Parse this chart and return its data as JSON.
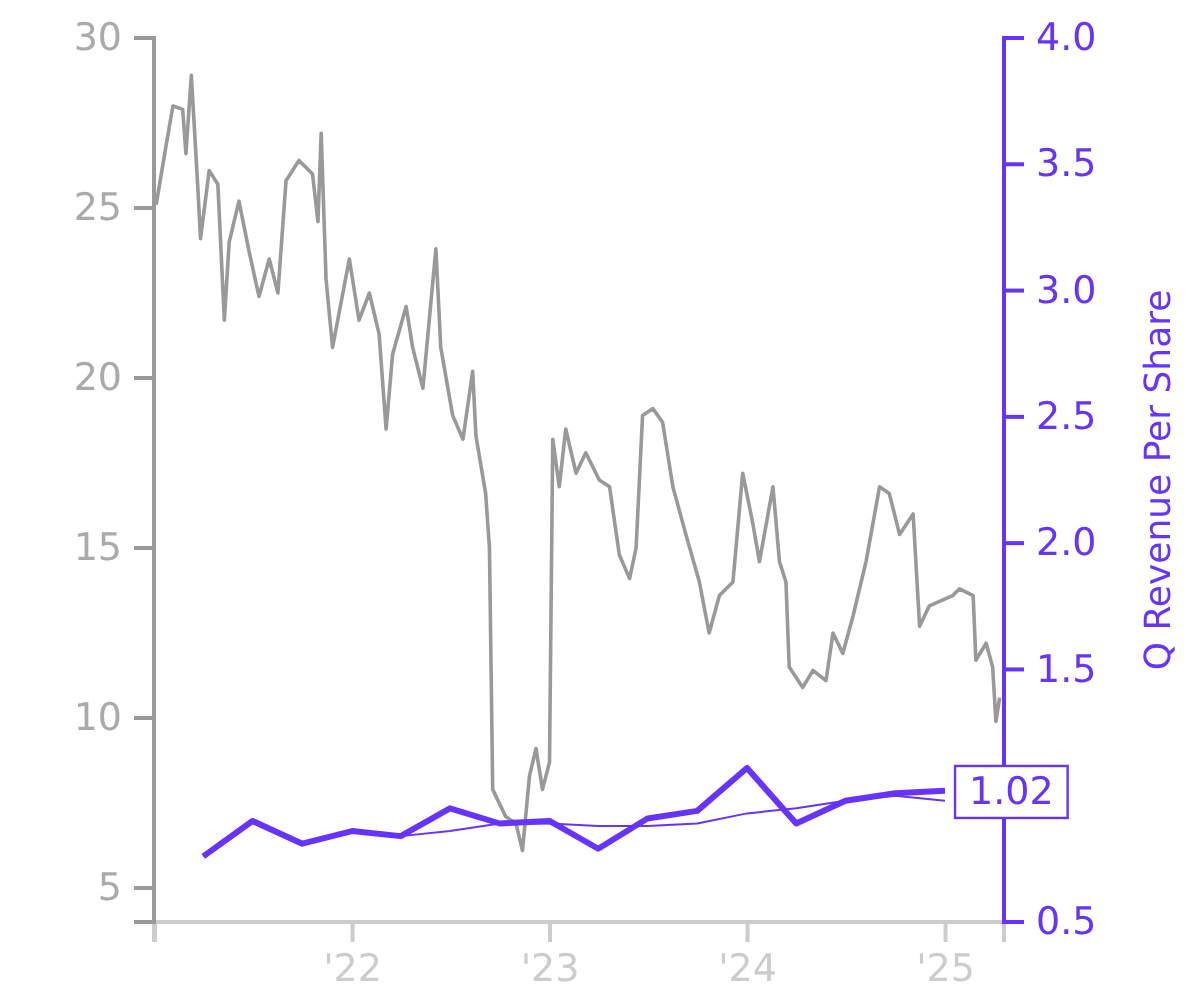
{
  "chart_data": {
    "type": "line",
    "y2label": "Q Revenue Per Share",
    "xlim": [
      "2020-12-30",
      "2025-04-19"
    ],
    "ylim": [
      4,
      30
    ],
    "y2lim": [
      0.5,
      4.0
    ],
    "xticks": [
      {
        "value": "2021-01-01",
        "label": null
      },
      {
        "value": "2022-01-01",
        "label": "'22"
      },
      {
        "value": "2023-01-01",
        "label": "'23"
      },
      {
        "value": "2024-01-01",
        "label": "'24"
      },
      {
        "value": "2025-01-01",
        "label": "'25"
      }
    ],
    "yticks": [
      5,
      10,
      15,
      20,
      25,
      30
    ],
    "y2ticks": [
      0.5,
      1.5,
      {
        "value": 2,
        "label": "2.0"
      },
      2.5,
      {
        "value": 3,
        "label": "3.0"
      },
      3.5,
      {
        "value": 4,
        "label": "4.0"
      }
    ],
    "grid": false,
    "series": [
      {
        "color": "#999999",
        "x": [
          "2021-01-03",
          "2021-01-22",
          "2021-02-03",
          "2021-02-21",
          "2021-02-27",
          "2021-03-09",
          "2021-03-21",
          "2021-03-26",
          "2021-04-11",
          "2021-04-27",
          "2021-05-09",
          "2021-05-18",
          "2021-06-05",
          "2021-06-24",
          "2021-07-12",
          "2021-07-31",
          "2021-08-16",
          "2021-08-31",
          "2021-09-24",
          "2021-10-19",
          "2021-10-29",
          "2021-11-04",
          "2021-11-13",
          "2021-11-25",
          "2021-12-26",
          "2022-01-13",
          "2022-02-01",
          "2022-02-19",
          "2022-03-04",
          "2022-03-16",
          "2022-04-10",
          "2022-04-22",
          "2022-05-11",
          "2022-06-04",
          "2022-06-13",
          "2022-07-05",
          "2022-07-24",
          "2022-08-11",
          "2022-08-17",
          "2022-09-04",
          "2022-09-11",
          "2022-09-17",
          "2022-09-29",
          "2022-10-11",
          "2022-10-30",
          "2022-11-11",
          "2022-11-24",
          "2022-12-06",
          "2022-12-18",
          "2022-12-31",
          "2023-01-06",
          "2023-01-18",
          "2023-01-30",
          "2023-02-18",
          "2023-03-08",
          "2023-04-02",
          "2023-04-21",
          "2023-05-09",
          "2023-05-28",
          "2023-06-09",
          "2023-06-21",
          "2023-07-10",
          "2023-07-28",
          "2023-08-16",
          "2023-09-09",
          "2023-10-04",
          "2023-10-22",
          "2023-11-10",
          "2023-12-05",
          "2023-12-23",
          "2024-01-11",
          "2024-01-23",
          "2024-02-17",
          "2024-02-29",
          "2024-03-12",
          "2024-03-18",
          "2024-04-12",
          "2024-05-01",
          "2024-05-25",
          "2024-06-07",
          "2024-06-25",
          "2024-07-14",
          "2024-08-07",
          "2024-09-01",
          "2024-09-19",
          "2024-10-08",
          "2024-11-02",
          "2024-11-14",
          "2024-12-02",
          "2025-01-14",
          "2025-01-27",
          "2025-02-21",
          "2025-02-26",
          "2025-03-17",
          "2025-03-29",
          "2025-04-04",
          "2025-04-11"
        ],
        "values": [
          25.1,
          26.9,
          28.0,
          27.9,
          26.6,
          28.9,
          25.6,
          24.1,
          26.1,
          25.7,
          21.7,
          24.0,
          25.2,
          23.7,
          22.4,
          23.5,
          22.5,
          25.8,
          26.4,
          26.0,
          24.6,
          27.2,
          22.9,
          20.9,
          23.5,
          21.7,
          22.5,
          21.3,
          18.5,
          20.7,
          22.1,
          20.9,
          19.7,
          23.8,
          20.9,
          18.9,
          18.2,
          20.2,
          18.3,
          16.6,
          15.0,
          7.9,
          7.5,
          7.1,
          6.9,
          6.1,
          8.3,
          9.1,
          7.9,
          8.7,
          18.2,
          16.8,
          18.5,
          17.2,
          17.8,
          17.0,
          16.8,
          14.8,
          14.1,
          15.0,
          18.9,
          19.1,
          18.7,
          16.8,
          15.4,
          14.0,
          12.5,
          13.6,
          14.0,
          17.2,
          15.7,
          14.6,
          16.8,
          14.6,
          14.0,
          11.5,
          10.9,
          11.4,
          11.1,
          12.5,
          11.9,
          13.0,
          14.6,
          16.8,
          16.6,
          15.4,
          16.0,
          12.7,
          13.3,
          13.6,
          13.8,
          13.6,
          11.7,
          12.2,
          11.5,
          9.9,
          10.6
        ]
      },
      {
        "color": "#6633ff",
        "axis": "y2",
        "x": [
          "2021-03-31",
          "2021-06-30",
          "2021-09-30",
          "2021-12-31",
          "2022-03-31",
          "2022-06-30",
          "2022-09-30",
          "2022-12-31",
          "2023-03-31",
          "2023-06-30",
          "2023-09-30",
          "2023-12-31",
          "2024-03-31",
          "2024-06-30",
          "2024-09-30",
          "2024-12-31"
        ],
        "values": [
          0.76,
          0.9,
          0.81,
          0.86,
          0.84,
          0.95,
          0.89,
          0.9,
          0.79,
          0.91,
          0.94,
          1.11,
          0.89,
          0.98,
          1.01,
          1.02
        ],
        "value_labels": [
          null,
          null,
          null,
          null,
          null,
          null,
          null,
          null,
          null,
          null,
          null,
          null,
          null,
          null,
          null,
          "1.02"
        ]
      },
      {
        "color": "#6633ff",
        "axis": "y2",
        "x": [
          "2021-12-31",
          "2022-03-31",
          "2022-06-30",
          "2022-09-30",
          "2022-12-31",
          "2023-03-31",
          "2023-06-30",
          "2023-09-30",
          "2023-12-31",
          "2024-03-31",
          "2024-06-30",
          "2024-09-30",
          "2024-12-31"
        ],
        "values": [
          0.86,
          0.84,
          0.86,
          0.89,
          0.89,
          0.88,
          0.88,
          0.89,
          0.93,
          0.95,
          0.98,
          1.0,
          0.98
        ]
      }
    ]
  }
}
